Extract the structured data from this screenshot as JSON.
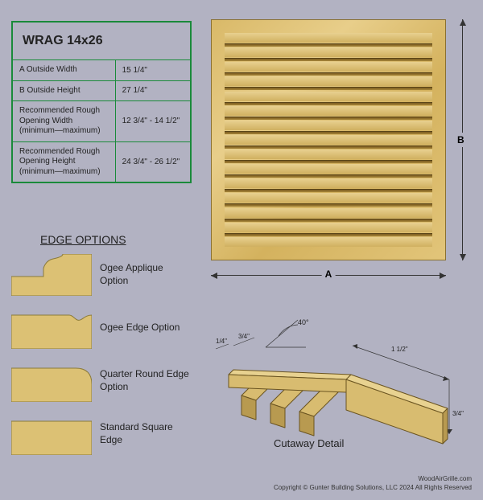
{
  "spec": {
    "title": "WRAG 14x26",
    "border_color": "#1a8a3a",
    "rows": [
      {
        "label": "A  Outside Width",
        "value": "15 1/4\""
      },
      {
        "label": "B  Outside Height",
        "value": "27 1/4\""
      },
      {
        "label": "Recommended Rough Opening Width (minimum—maximum)",
        "value": "12 3/4\" - 14 1/2\""
      },
      {
        "label": "Recommended Rough Opening Height (minimum—maximum)",
        "value": "24 3/4\" - 26 1/2\""
      }
    ]
  },
  "edge": {
    "title": "EDGE OPTIONS",
    "fill": "#dcc174",
    "stroke": "#8a7a3a",
    "options": [
      {
        "label": "Ogee Applique Option",
        "shape": "ogee-applique"
      },
      {
        "label": "Ogee Edge Option",
        "shape": "ogee-edge"
      },
      {
        "label": "Quarter Round Edge Option",
        "shape": "quarter-round"
      },
      {
        "label": "Standard Square Edge",
        "shape": "square"
      }
    ]
  },
  "grille": {
    "slat_count": 15,
    "wood_gradient": [
      "#d9b968",
      "#e8ce8a",
      "#d4b25e",
      "#e2c57a"
    ],
    "dim_a_label": "A",
    "dim_b_label": "B"
  },
  "cutaway": {
    "label": "Cutaway Detail",
    "angle": "40°",
    "dims": {
      "quarter1": "1/4\"",
      "three_quarter1": "3/4\"",
      "one_half": "1 1/2\"",
      "three_quarter2": "3/4\""
    },
    "wood_fill": "#d8bc70",
    "wood_fill_light": "#e8d290",
    "wood_fill_dark": "#b89a50",
    "stroke": "#6a5420"
  },
  "footer": {
    "site": "WoodAirGrille.com",
    "copyright": "Copyright © Gunter Building Solutions, LLC 2024 All Rights Reserved"
  },
  "colors": {
    "background": "#b2b2c2",
    "text": "#222222",
    "dim_line": "#333333"
  }
}
